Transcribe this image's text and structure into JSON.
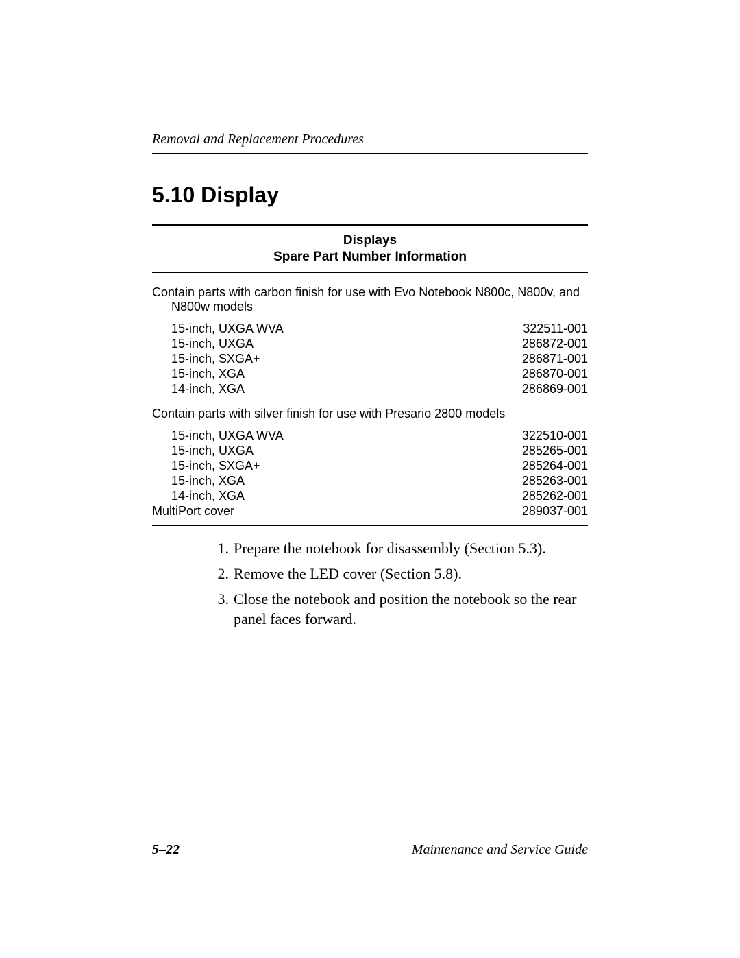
{
  "header": {
    "running_head": "Removal and Replacement Procedures"
  },
  "section": {
    "heading": "5.10 Display"
  },
  "table": {
    "title_line1": "Displays",
    "title_line2": "Spare Part Number Information",
    "groups": [
      {
        "intro": "Contain parts with carbon finish for use with Evo Notebook N800c, N800v, and N800w models",
        "items": [
          {
            "desc": "15-inch, UXGA WVA",
            "num": "322511-001"
          },
          {
            "desc": "15-inch, UXGA",
            "num": "286872-001"
          },
          {
            "desc": "15-inch, SXGA+",
            "num": "286871-001"
          },
          {
            "desc": "15-inch, XGA",
            "num": "286870-001"
          },
          {
            "desc": "14-inch, XGA",
            "num": "286869-001"
          }
        ]
      },
      {
        "intro": "Contain parts with silver finish for use with Presario 2800 models",
        "items": [
          {
            "desc": "15-inch, UXGA WVA",
            "num": "322510-001"
          },
          {
            "desc": "15-inch, UXGA",
            "num": "285265-001"
          },
          {
            "desc": "15-inch, SXGA+",
            "num": "285264-001"
          },
          {
            "desc": "15-inch, XGA",
            "num": "285263-001"
          },
          {
            "desc": "14-inch, XGA",
            "num": "285262-001"
          }
        ]
      }
    ],
    "extra_row": {
      "desc": "MultiPort cover",
      "num": "289037-001"
    }
  },
  "steps": [
    "Prepare the notebook for disassembly (Section 5.3).",
    "Remove the LED cover (Section 5.8).",
    "Close the notebook and position the notebook so the rear panel faces forward."
  ],
  "footer": {
    "page": "5–22",
    "book": "Maintenance and Service Guide"
  }
}
